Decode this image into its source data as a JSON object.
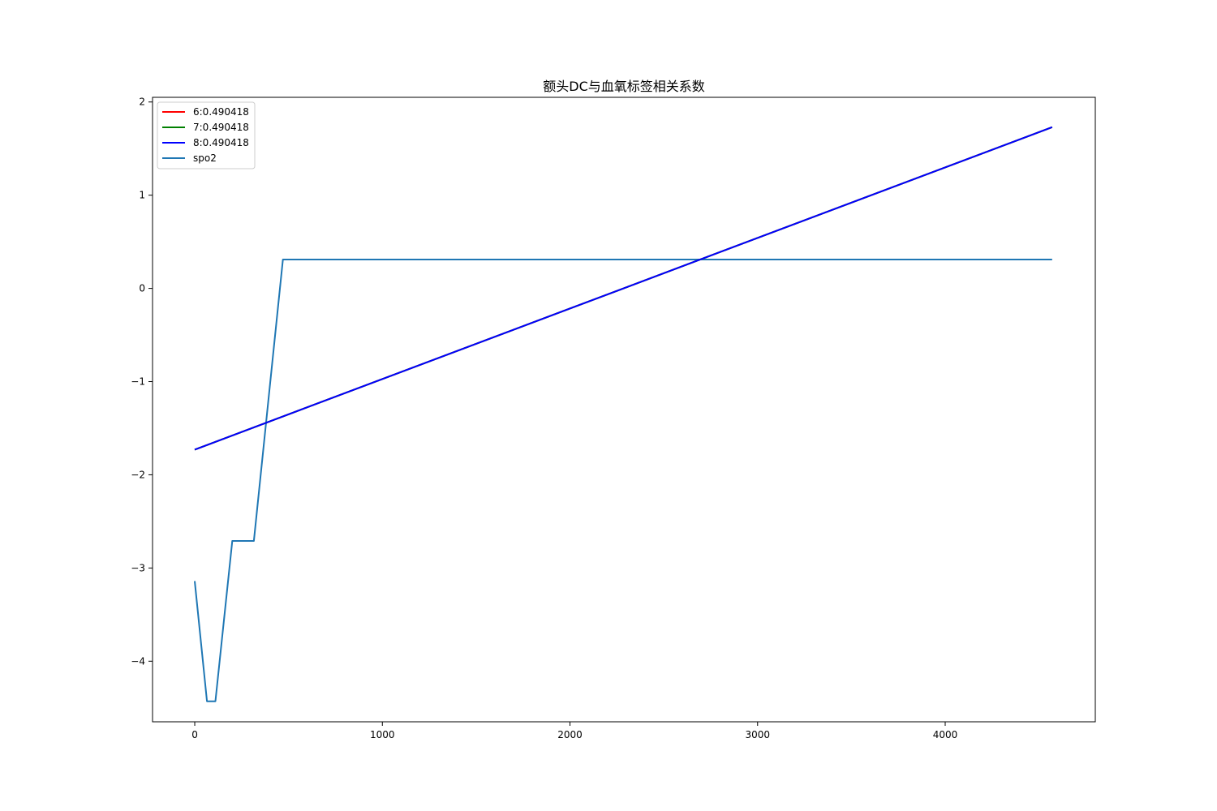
{
  "chart_data": {
    "type": "line",
    "title": "额头DC与血氧标签相关系数",
    "xlabel": "",
    "ylabel": "",
    "xlim": [
      -225,
      4800
    ],
    "ylim": [
      -4.65,
      2.05
    ],
    "xticks": [
      0,
      1000,
      2000,
      3000,
      4000
    ],
    "yticks": [
      -4,
      -3,
      -2,
      -1,
      0,
      1,
      2
    ],
    "ytick_labels": [
      "−4",
      "−3",
      "−2",
      "−1",
      "0",
      "1",
      "2"
    ],
    "grid": false,
    "legend_position": "upper-left",
    "series": [
      {
        "name": "6:0.490418",
        "color": "#ff0000",
        "x": [
          0,
          4570
        ],
        "y": [
          -1.73,
          1.73
        ]
      },
      {
        "name": "7:0.490418",
        "color": "#008000",
        "x": [
          0,
          4570
        ],
        "y": [
          -1.73,
          1.73
        ]
      },
      {
        "name": "8:0.490418",
        "color": "#0000ff",
        "x": [
          0,
          4570
        ],
        "y": [
          -1.73,
          1.73
        ]
      },
      {
        "name": "spo2",
        "color": "#1f77b4",
        "x": [
          0,
          65,
          110,
          200,
          315,
          470,
          4570
        ],
        "y": [
          -3.14,
          -4.43,
          -4.43,
          -2.71,
          -2.71,
          0.31,
          0.31
        ]
      }
    ]
  }
}
